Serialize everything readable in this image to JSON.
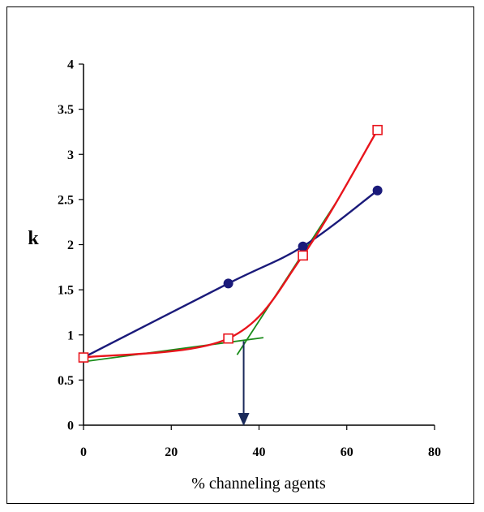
{
  "chart_data": {
    "type": "line",
    "title": "",
    "xlabel": "% channeling agents",
    "ylabel": "k",
    "xlim": [
      0,
      80
    ],
    "ylim": [
      0,
      4
    ],
    "xticks": [
      "0",
      "20",
      "40",
      "60",
      "80"
    ],
    "yticks": [
      "0",
      "0.5",
      "1",
      "1.5",
      "2",
      "2.5",
      "3",
      "3.5",
      "4"
    ],
    "grid": false,
    "legend": "none",
    "series": [
      {
        "marker": "circle-filled",
        "color": "#1a1a7a",
        "x": [
          0,
          33,
          50,
          67
        ],
        "y": [
          0.75,
          1.57,
          1.98,
          2.6
        ]
      },
      {
        "marker": "square-open",
        "color": "#e8141c",
        "x": [
          0,
          33,
          50,
          67
        ],
        "y": [
          0.75,
          0.96,
          1.88,
          3.27
        ]
      }
    ],
    "tangent_lines": [
      {
        "color": "#1a8c1a",
        "x": [
          1,
          41
        ],
        "y": [
          0.71,
          0.97
        ]
      },
      {
        "color": "#1a8c1a",
        "x": [
          35,
          58
        ],
        "y": [
          0.78,
          2.5
        ]
      }
    ],
    "annotation_arrow": {
      "color": "#1a2a5a",
      "x": 36.5,
      "y_from": 0.93,
      "y_to": 0.0
    }
  }
}
